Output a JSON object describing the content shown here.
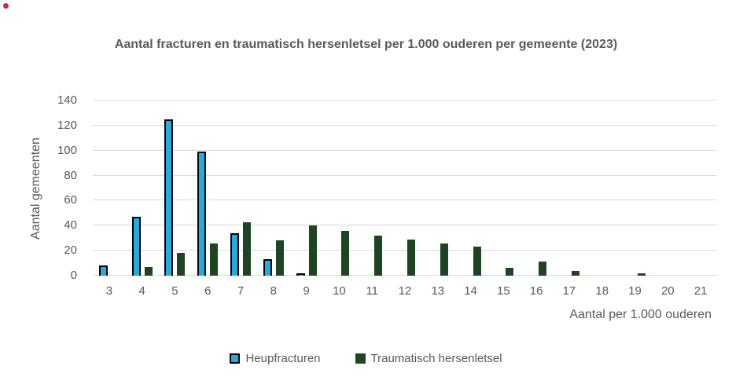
{
  "page": {
    "marker": "red-dot"
  },
  "chart_data": {
    "type": "bar",
    "title": "Aantal fracturen en traumatisch hersenletsel per 1.000 ouderen per gemeente (2023)",
    "xlabel": "Aantal per 1.000 ouderen",
    "ylabel": "Aantal gemeenten",
    "categories": [
      3,
      4,
      5,
      6,
      7,
      8,
      9,
      10,
      11,
      12,
      13,
      14,
      15,
      16,
      17,
      18,
      19,
      20,
      21
    ],
    "series": [
      {
        "name": "Heupfracturen",
        "color": "#21ace3",
        "border_color": "#000000",
        "values": [
          8,
          47,
          125,
          99,
          34,
          13,
          2,
          0,
          0,
          0,
          0,
          0,
          0,
          0,
          0,
          0,
          0,
          0,
          0
        ]
      },
      {
        "name": "Traumatisch hersenletsel",
        "color": "#1e4521",
        "border_color": "#1e4521",
        "values": [
          0,
          7,
          18,
          26,
          43,
          28,
          40,
          36,
          32,
          29,
          26,
          23,
          6,
          11,
          4,
          0,
          2,
          0,
          0
        ]
      }
    ],
    "ylim": [
      0,
      140
    ],
    "ytick_step": 20,
    "grid": true,
    "legend_position": "bottom",
    "colors": {
      "text": "#595959",
      "gridline": "#d9d9d9"
    }
  }
}
